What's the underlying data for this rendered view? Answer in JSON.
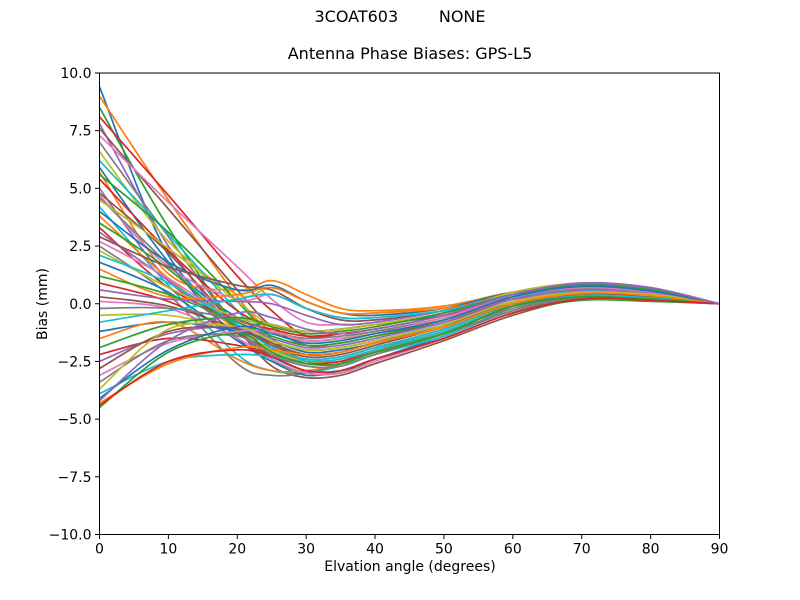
{
  "figure": {
    "suptitle": "3COAT603        NONE"
  },
  "chart_data": {
    "type": "line",
    "title": "Antenna Phase Biases: GPS-L5",
    "xlabel": "Elvation angle (degrees)",
    "ylabel": "Bias (mm)",
    "xlim": [
      0,
      90
    ],
    "ylim": [
      -10,
      10
    ],
    "grid": false,
    "legend": "none",
    "xticks": [
      0,
      10,
      20,
      30,
      40,
      50,
      60,
      70,
      80,
      90
    ],
    "xticklabels": [
      "0",
      "10",
      "20",
      "30",
      "40",
      "50",
      "60",
      "70",
      "80",
      "90"
    ],
    "yticks": [
      10,
      7.5,
      5,
      2.5,
      0,
      -2.5,
      -5,
      -7.5,
      -10
    ],
    "yticklabels": [
      "10.0",
      "7.5",
      "5.0",
      "2.5",
      "0.0",
      "−2.5",
      "−5.0",
      "−7.5",
      "−10.0"
    ],
    "palette": [
      "#1f77b4",
      "#ff7f0e",
      "#2ca02c",
      "#d62728",
      "#9467bd",
      "#8c564b",
      "#e377c2",
      "#7f7f7f",
      "#bcbd22",
      "#17becf"
    ],
    "x": [
      0,
      10,
      20,
      25,
      30,
      35,
      40,
      50,
      60,
      70,
      80,
      90
    ],
    "series": [
      {
        "color": "#1f77b4",
        "y": [
          9.4,
          2.1,
          -0.6,
          -0.9,
          -1.2,
          -1.1,
          -0.9,
          -0.5,
          0.2,
          0.5,
          0.4,
          0
        ]
      },
      {
        "color": "#ff7f0e",
        "y": [
          9.0,
          4.5,
          0.3,
          -1.2,
          -1.6,
          -1.5,
          -1.2,
          -0.7,
          0.2,
          0.6,
          0.45,
          0
        ]
      },
      {
        "color": "#2ca02c",
        "y": [
          8.5,
          3.3,
          -1.0,
          -1.6,
          -2.0,
          -1.9,
          -1.6,
          -0.9,
          -0.1,
          0.3,
          0.2,
          0
        ]
      },
      {
        "color": "#d62728",
        "y": [
          8.1,
          4.7,
          1.2,
          -0.3,
          -1.4,
          -1.3,
          -1.1,
          -0.5,
          0.3,
          0.7,
          0.5,
          0
        ]
      },
      {
        "color": "#9467bd",
        "y": [
          7.8,
          2.5,
          -1.2,
          -1.9,
          -2.4,
          -2.3,
          -1.9,
          -1.1,
          0.0,
          0.4,
          0.3,
          0
        ]
      },
      {
        "color": "#8c564b",
        "y": [
          7.6,
          4.1,
          0.6,
          -1.0,
          -1.8,
          -1.7,
          -1.4,
          -0.8,
          0.1,
          0.55,
          0.4,
          0
        ]
      },
      {
        "color": "#e377c2",
        "y": [
          7.3,
          4.4,
          1.6,
          0.2,
          -0.8,
          -0.9,
          -0.8,
          -0.3,
          0.4,
          0.8,
          0.6,
          0
        ]
      },
      {
        "color": "#7f7f7f",
        "y": [
          7.0,
          2.9,
          -1.1,
          -2.2,
          -2.7,
          -2.7,
          -2.2,
          -1.3,
          -0.1,
          0.35,
          0.25,
          0
        ]
      },
      {
        "color": "#bcbd22",
        "y": [
          6.6,
          2.7,
          0.4,
          0.7,
          0.1,
          -0.4,
          -0.4,
          -0.1,
          0.4,
          0.65,
          0.5,
          0
        ]
      },
      {
        "color": "#17becf",
        "y": [
          6.2,
          3.0,
          -0.3,
          -1.7,
          -2.2,
          -2.1,
          -1.7,
          -1.0,
          0.0,
          0.45,
          0.35,
          0
        ]
      },
      {
        "color": "#1f77b4",
        "y": [
          5.9,
          1.8,
          -1.5,
          -2.3,
          -2.9,
          -2.9,
          -2.4,
          -1.4,
          -0.3,
          0.25,
          0.2,
          0
        ]
      },
      {
        "color": "#ff7f0e",
        "y": [
          5.7,
          1.3,
          0.6,
          1.0,
          0.4,
          -0.2,
          -0.3,
          -0.1,
          0.5,
          0.75,
          0.55,
          0
        ]
      },
      {
        "color": "#2ca02c",
        "y": [
          5.6,
          3.1,
          0.1,
          -1.5,
          -2.5,
          -2.5,
          -2.1,
          -1.2,
          -0.1,
          0.3,
          0.2,
          0
        ]
      },
      {
        "color": "#d62728",
        "y": [
          5.4,
          2.3,
          -0.3,
          -0.9,
          -1.2,
          -1.1,
          -0.9,
          -0.4,
          0.4,
          0.85,
          0.65,
          0
        ]
      },
      {
        "color": "#9467bd",
        "y": [
          5.0,
          1.0,
          -1.0,
          -1.6,
          -2.0,
          -1.9,
          -1.6,
          -0.9,
          0.1,
          0.5,
          0.4,
          0
        ]
      },
      {
        "color": "#8c564b",
        "y": [
          4.8,
          2.2,
          -1.1,
          -2.7,
          -3.2,
          -3.1,
          -2.6,
          -1.6,
          -0.5,
          0.2,
          0.15,
          0
        ]
      },
      {
        "color": "#e377c2",
        "y": [
          4.7,
          1.6,
          0.2,
          0.4,
          -0.2,
          -0.6,
          -0.6,
          -0.3,
          0.3,
          0.6,
          0.45,
          0
        ]
      },
      {
        "color": "#7f7f7f",
        "y": [
          4.6,
          1.7,
          -1.2,
          -1.9,
          -2.4,
          -2.3,
          -1.9,
          -1.1,
          0.0,
          0.4,
          0.3,
          0
        ]
      },
      {
        "color": "#bcbd22",
        "y": [
          4.5,
          2.4,
          0.1,
          -1.0,
          -1.6,
          -1.5,
          -1.2,
          -0.6,
          0.3,
          0.7,
          0.5,
          0
        ]
      },
      {
        "color": "#17becf",
        "y": [
          4.2,
          0.8,
          -2.2,
          -2.9,
          -3.0,
          -2.7,
          -2.2,
          -1.4,
          -0.2,
          0.3,
          0.2,
          0
        ]
      },
      {
        "color": "#1f77b4",
        "y": [
          4.0,
          1.8,
          0.6,
          0.8,
          0.1,
          -0.4,
          -0.5,
          -0.2,
          0.5,
          0.8,
          0.6,
          0
        ]
      },
      {
        "color": "#ff7f0e",
        "y": [
          3.8,
          1.1,
          -1.1,
          -1.7,
          -2.2,
          -2.1,
          -1.7,
          -1.0,
          0.0,
          0.45,
          0.35,
          0
        ]
      },
      {
        "color": "#2ca02c",
        "y": [
          3.5,
          1.5,
          -1.1,
          -2.4,
          -3.0,
          -3.0,
          -2.4,
          -1.5,
          -0.4,
          0.15,
          0.1,
          0
        ]
      },
      {
        "color": "#d62728",
        "y": [
          3.3,
          0.7,
          -0.7,
          -1.1,
          -1.4,
          -1.3,
          -1.1,
          -0.5,
          0.3,
          0.65,
          0.5,
          0
        ]
      },
      {
        "color": "#9467bd",
        "y": [
          3.1,
          1.0,
          -1.3,
          -2.0,
          -2.5,
          -2.5,
          -2.0,
          -1.2,
          -0.1,
          0.35,
          0.25,
          0
        ]
      },
      {
        "color": "#8c564b",
        "y": [
          2.9,
          1.6,
          0.8,
          0.6,
          -0.2,
          -0.7,
          -0.7,
          -0.3,
          0.4,
          0.7,
          0.55,
          0
        ]
      },
      {
        "color": "#e377c2",
        "y": [
          2.7,
          1.1,
          -0.9,
          -1.6,
          -2.0,
          -1.9,
          -1.6,
          -0.9,
          0.1,
          0.55,
          0.4,
          0
        ]
      },
      {
        "color": "#7f7f7f",
        "y": [
          2.5,
          0.4,
          -2.6,
          -3.1,
          -3.0,
          -2.6,
          -2.0,
          -1.2,
          -0.2,
          0.25,
          0.2,
          0
        ]
      },
      {
        "color": "#bcbd22",
        "y": [
          2.3,
          0.7,
          -0.6,
          -0.9,
          -1.2,
          -1.1,
          -0.9,
          -0.4,
          0.5,
          0.9,
          0.7,
          0
        ]
      },
      {
        "color": "#17becf",
        "y": [
          2.1,
          0.9,
          -0.9,
          -1.9,
          -2.4,
          -2.3,
          -1.9,
          -1.1,
          0.0,
          0.4,
          0.3,
          0
        ]
      },
      {
        "color": "#1f77b4",
        "y": [
          1.8,
          0.5,
          -1.6,
          -2.5,
          -3.1,
          -2.9,
          -2.4,
          -1.5,
          -0.4,
          0.2,
          0.15,
          0
        ]
      },
      {
        "color": "#ff7f0e",
        "y": [
          1.5,
          0.3,
          0.4,
          0.7,
          0.1,
          -0.4,
          -0.4,
          -0.2,
          0.3,
          0.6,
          0.45,
          0
        ]
      },
      {
        "color": "#2ca02c",
        "y": [
          1.2,
          0.4,
          -0.8,
          -1.4,
          -1.8,
          -1.7,
          -1.4,
          -0.7,
          0.3,
          0.75,
          0.55,
          0
        ]
      },
      {
        "color": "#d62728",
        "y": [
          0.9,
          0.1,
          -1.3,
          -2.0,
          -2.5,
          -2.5,
          -2.0,
          -1.2,
          -0.1,
          0.3,
          0.2,
          0
        ]
      },
      {
        "color": "#9467bd",
        "y": [
          0.6,
          0.2,
          0.1,
          0.0,
          -0.5,
          -0.9,
          -0.8,
          -0.3,
          0.4,
          0.85,
          0.65,
          0
        ]
      },
      {
        "color": "#8c564b",
        "y": [
          0.3,
          -0.1,
          -1.1,
          -1.7,
          -2.2,
          -2.1,
          -1.7,
          -1.0,
          0.1,
          0.5,
          0.4,
          0
        ]
      },
      {
        "color": "#e377c2",
        "y": [
          0.1,
          -0.2,
          -1.5,
          -2.4,
          -3.0,
          -3.0,
          -2.5,
          -1.5,
          -0.4,
          0.25,
          0.2,
          0
        ]
      },
      {
        "color": "#7f7f7f",
        "y": [
          -0.2,
          -0.2,
          -0.7,
          -1.2,
          -1.5,
          -1.4,
          -1.2,
          -0.6,
          0.3,
          0.65,
          0.5,
          0
        ]
      },
      {
        "color": "#bcbd22",
        "y": [
          -0.5,
          -0.5,
          -1.2,
          -2.0,
          -2.5,
          -2.4,
          -2.0,
          -1.2,
          -0.1,
          0.35,
          0.25,
          0
        ]
      },
      {
        "color": "#17becf",
        "y": [
          -0.8,
          -0.3,
          0.2,
          0.4,
          -0.2,
          -0.6,
          -0.6,
          -0.3,
          0.3,
          0.55,
          0.4,
          0
        ]
      },
      {
        "color": "#1f77b4",
        "y": [
          -1.2,
          -0.8,
          -1.2,
          -1.6,
          -2.1,
          -2.0,
          -1.7,
          -0.9,
          0.0,
          0.45,
          0.35,
          0
        ]
      },
      {
        "color": "#ff7f0e",
        "y": [
          -1.5,
          -0.8,
          -2.4,
          -2.9,
          -2.9,
          -2.6,
          -2.1,
          -1.3,
          -0.3,
          0.2,
          0.15,
          0
        ]
      },
      {
        "color": "#2ca02c",
        "y": [
          -1.9,
          -0.9,
          -0.6,
          -1.0,
          -1.3,
          -1.2,
          -1.0,
          -0.4,
          0.4,
          0.8,
          0.6,
          0
        ]
      },
      {
        "color": "#d62728",
        "y": [
          -2.2,
          -1.5,
          -1.8,
          -2.2,
          -2.6,
          -2.6,
          -2.1,
          -1.3,
          -0.1,
          0.3,
          0.2,
          0
        ]
      },
      {
        "color": "#9467bd",
        "y": [
          -2.5,
          -1.3,
          -1.0,
          -1.5,
          -1.9,
          -1.8,
          -1.5,
          -0.8,
          0.2,
          0.6,
          0.45,
          0
        ]
      },
      {
        "color": "#8c564b",
        "y": [
          -2.8,
          -1.2,
          -1.1,
          -1.8,
          -2.3,
          -2.2,
          -1.8,
          -1.0,
          0.0,
          0.4,
          0.3,
          0
        ]
      },
      {
        "color": "#e377c2",
        "y": [
          -3.1,
          -1.7,
          -1.2,
          -1.2,
          -1.6,
          -1.5,
          -1.3,
          -0.6,
          0.3,
          0.7,
          0.5,
          0
        ]
      },
      {
        "color": "#7f7f7f",
        "y": [
          -3.4,
          -1.6,
          -1.4,
          -2.2,
          -2.7,
          -2.7,
          -2.2,
          -1.3,
          -0.3,
          0.25,
          0.2,
          0
        ]
      },
      {
        "color": "#bcbd22",
        "y": [
          -3.7,
          -1.1,
          -1.0,
          -1.6,
          -2.0,
          -1.9,
          -1.6,
          -0.9,
          0.1,
          0.5,
          0.4,
          0
        ]
      },
      {
        "color": "#17becf",
        "y": [
          -3.9,
          -2.5,
          -2.2,
          -2.3,
          -2.5,
          -2.4,
          -2.0,
          -1.2,
          -0.1,
          0.35,
          0.25,
          0
        ]
      },
      {
        "color": "#1f77b4",
        "y": [
          -4.1,
          -2.0,
          -1.0,
          -1.3,
          -1.7,
          -1.6,
          -1.3,
          -0.7,
          0.3,
          0.75,
          0.55,
          0
        ]
      },
      {
        "color": "#ff7f0e",
        "y": [
          -4.3,
          -2.6,
          -1.9,
          -2.0,
          -2.2,
          -2.1,
          -1.7,
          -1.0,
          0.0,
          0.45,
          0.35,
          0
        ]
      },
      {
        "color": "#2ca02c",
        "y": [
          -4.5,
          -2.1,
          -1.3,
          -2.1,
          -2.6,
          -2.6,
          -2.1,
          -1.3,
          -0.1,
          0.3,
          0.2,
          0
        ]
      },
      {
        "color": "#d62728",
        "y": [
          -4.4,
          -2.5,
          -2.0,
          -2.3,
          -2.9,
          -2.9,
          -2.4,
          -1.5,
          -0.4,
          0.2,
          0.15,
          0
        ]
      },
      {
        "color": "#9467bd",
        "y": [
          -4.2,
          -1.6,
          -0.4,
          -0.6,
          -1.1,
          -1.3,
          -1.1,
          -0.5,
          0.4,
          0.9,
          0.7,
          0
        ]
      }
    ]
  }
}
